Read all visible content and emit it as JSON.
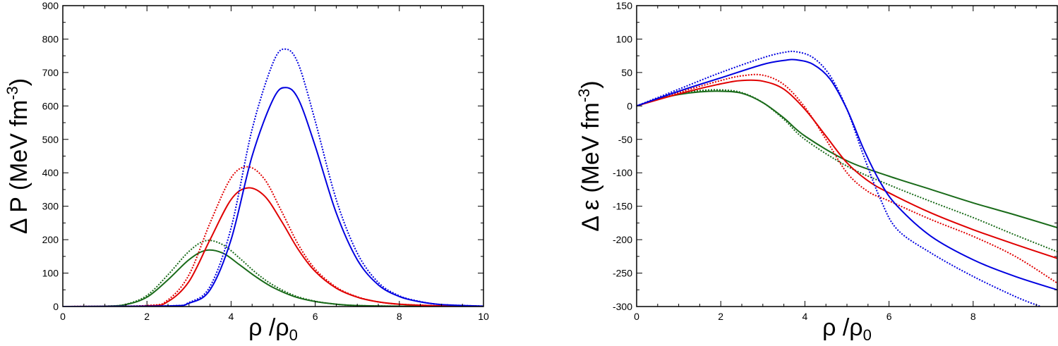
{
  "chart_data": [
    {
      "type": "line",
      "panel": "left",
      "xlabel": "ρ /ρ0",
      "xlabel_parts": {
        "main": "ρ  /ρ",
        "sub": "0"
      },
      "ylabel": "Δ P (MeV fm-3)",
      "ylabel_parts": {
        "main": "Δ P (MeV fm",
        "sup": "-3",
        "close": ")"
      },
      "xlim": [
        0,
        10
      ],
      "ylim": [
        0,
        900
      ],
      "xticks": [
        0,
        2,
        4,
        6,
        8,
        10
      ],
      "xtick_labels": [
        "0",
        "2",
        "4",
        "6",
        "8",
        "10"
      ],
      "yticks": [
        0,
        100,
        200,
        300,
        400,
        500,
        600,
        700,
        800,
        900
      ],
      "ytick_labels": [
        "0",
        "100",
        "200",
        "300",
        "400",
        "500",
        "600",
        "700",
        "800",
        "900"
      ],
      "series": [
        {
          "name": "green-solid",
          "color": "#1a6b1a",
          "style": "solid",
          "x": [
            0,
            1.0,
            1.5,
            2.0,
            2.5,
            3.0,
            3.4,
            3.8,
            4.2,
            4.6,
            5.0,
            5.5,
            6.0,
            6.5,
            7.0,
            8.0,
            10.0
          ],
          "y": [
            0,
            1,
            6,
            28,
            80,
            140,
            168,
            160,
            125,
            88,
            57,
            30,
            15,
            7,
            3,
            1,
            0
          ]
        },
        {
          "name": "green-dotted",
          "color": "#1a6b1a",
          "style": "dotted",
          "x": [
            0,
            1.0,
            1.5,
            2.0,
            2.5,
            3.0,
            3.4,
            3.8,
            4.2,
            4.6,
            5.0,
            5.5,
            6.0,
            6.5,
            7.0,
            8.0,
            10.0
          ],
          "y": [
            0,
            1,
            7,
            33,
            95,
            165,
            197,
            185,
            145,
            100,
            64,
            33,
            16,
            7,
            3,
            1,
            0
          ]
        },
        {
          "name": "red-solid",
          "color": "#e00000",
          "style": "solid",
          "x": [
            0,
            2.0,
            2.5,
            3.0,
            3.5,
            4.0,
            4.4,
            4.8,
            5.2,
            5.6,
            6.0,
            6.5,
            7.0,
            7.5,
            8.0,
            9.0,
            10.0
          ],
          "y": [
            0,
            2,
            15,
            75,
            200,
            320,
            355,
            330,
            255,
            170,
            105,
            55,
            28,
            14,
            7,
            2,
            0
          ]
        },
        {
          "name": "red-dotted",
          "color": "#e00000",
          "style": "dotted",
          "x": [
            0,
            2.0,
            2.5,
            3.0,
            3.5,
            4.0,
            4.4,
            4.8,
            5.2,
            5.6,
            6.0,
            6.5,
            7.0,
            7.5,
            8.0,
            9.0,
            10.0
          ],
          "y": [
            0,
            3,
            20,
            95,
            250,
            385,
            418,
            380,
            285,
            185,
            112,
            58,
            29,
            14,
            7,
            2,
            0
          ]
        },
        {
          "name": "blue-solid",
          "color": "#0000e0",
          "style": "solid",
          "x": [
            0,
            2.5,
            3.0,
            3.5,
            4.0,
            4.5,
            5.0,
            5.3,
            5.6,
            6.0,
            6.5,
            7.0,
            7.5,
            8.0,
            8.5,
            9.0,
            10.0
          ],
          "y": [
            0,
            2,
            10,
            50,
            200,
            450,
            620,
            655,
            620,
            480,
            280,
            140,
            65,
            30,
            14,
            6,
            1
          ]
        },
        {
          "name": "blue-dotted",
          "color": "#0000e0",
          "style": "dotted",
          "x": [
            0,
            2.5,
            3.0,
            3.5,
            4.0,
            4.5,
            5.0,
            5.3,
            5.6,
            6.0,
            6.5,
            7.0,
            7.5,
            8.0,
            8.5,
            9.0,
            10.0
          ],
          "y": [
            0,
            2,
            12,
            60,
            235,
            530,
            730,
            770,
            725,
            555,
            320,
            160,
            72,
            32,
            15,
            6,
            1
          ]
        }
      ]
    },
    {
      "type": "line",
      "panel": "right",
      "xlabel": "ρ /ρ0",
      "xlabel_parts": {
        "main": "ρ  /ρ",
        "sub": "0"
      },
      "ylabel": "Δ ε (MeV fm-3)",
      "ylabel_parts": {
        "main": "Δ ε  (MeV fm",
        "sup": "-3",
        "close": ")"
      },
      "xlim": [
        0,
        10
      ],
      "ylim": [
        -300,
        150
      ],
      "xticks": [
        0,
        2,
        4,
        6,
        8
      ],
      "xtick_labels": [
        "0",
        "2",
        "4",
        "6",
        "8"
      ],
      "yticks": [
        -300,
        -250,
        -200,
        -150,
        -100,
        -50,
        0,
        50,
        100,
        150
      ],
      "ytick_labels": [
        "-300",
        "-250",
        "-200",
        "-150",
        "-100",
        "-50",
        "0",
        "50",
        "100",
        "150"
      ],
      "series": [
        {
          "name": "green-solid",
          "color": "#1a6b1a",
          "style": "solid",
          "x": [
            0,
            0.5,
            1.0,
            1.5,
            2.0,
            2.5,
            3.0,
            3.5,
            4.0,
            5.0,
            6.0,
            7.0,
            8.0,
            9.0,
            10.0
          ],
          "y": [
            0,
            10,
            17,
            21,
            22,
            19,
            5,
            -18,
            -45,
            -82,
            -105,
            -125,
            -145,
            -163,
            -182
          ]
        },
        {
          "name": "green-dotted",
          "color": "#1a6b1a",
          "style": "dotted",
          "x": [
            0,
            0.5,
            1.0,
            1.5,
            2.0,
            2.5,
            3.0,
            3.5,
            4.0,
            5.0,
            6.0,
            7.0,
            8.0,
            9.0,
            10.0
          ],
          "y": [
            0,
            11,
            19,
            23,
            24,
            20,
            5,
            -20,
            -50,
            -90,
            -118,
            -143,
            -167,
            -193,
            -218
          ]
        },
        {
          "name": "red-solid",
          "color": "#e00000",
          "style": "solid",
          "x": [
            0,
            1.0,
            2.0,
            2.5,
            3.0,
            3.5,
            4.0,
            4.5,
            5.0,
            5.5,
            6.0,
            7.0,
            8.0,
            9.0,
            10.0
          ],
          "y": [
            0,
            18,
            33,
            38,
            37,
            25,
            -5,
            -45,
            -85,
            -112,
            -130,
            -160,
            -185,
            -207,
            -228
          ]
        },
        {
          "name": "red-dotted",
          "color": "#e00000",
          "style": "dotted",
          "x": [
            0,
            1.0,
            2.0,
            2.5,
            3.0,
            3.5,
            4.0,
            4.5,
            5.0,
            5.5,
            6.0,
            7.0,
            8.0,
            9.0,
            10.0
          ],
          "y": [
            0,
            20,
            38,
            45,
            46,
            32,
            -2,
            -50,
            -100,
            -128,
            -142,
            -170,
            -195,
            -225,
            -265
          ]
        },
        {
          "name": "blue-solid",
          "color": "#0000e0",
          "style": "solid",
          "x": [
            0,
            1.0,
            2.0,
            3.0,
            3.5,
            3.8,
            4.2,
            4.6,
            5.0,
            5.4,
            5.8,
            6.2,
            7.0,
            8.0,
            9.0,
            10.0
          ],
          "y": [
            0,
            22,
            42,
            62,
            68,
            69,
            62,
            40,
            -5,
            -65,
            -115,
            -150,
            -195,
            -230,
            -255,
            -275
          ]
        },
        {
          "name": "blue-dotted",
          "color": "#0000e0",
          "style": "dotted",
          "x": [
            0,
            1.0,
            2.0,
            3.0,
            3.5,
            3.8,
            4.2,
            4.6,
            5.0,
            5.4,
            5.8,
            6.2,
            7.0,
            8.0,
            9.0,
            9.6
          ],
          "y": [
            0,
            25,
            50,
            72,
            80,
            81,
            72,
            45,
            -5,
            -75,
            -140,
            -185,
            -220,
            -255,
            -285,
            -300
          ]
        }
      ]
    }
  ]
}
